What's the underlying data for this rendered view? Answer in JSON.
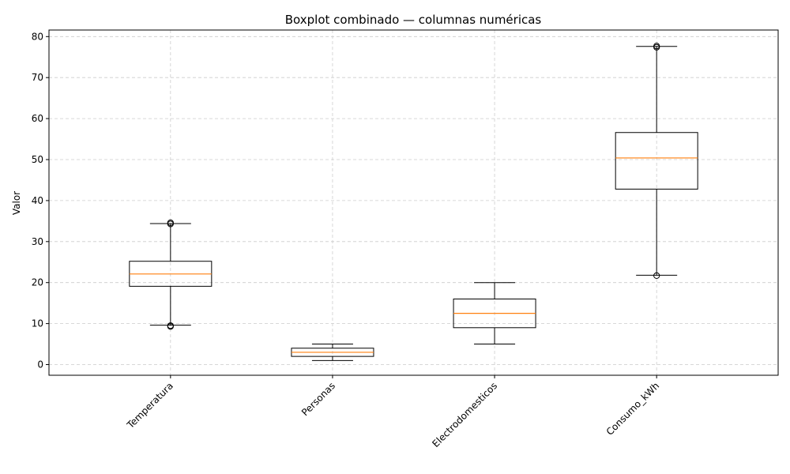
{
  "chart_data": {
    "type": "boxplot",
    "title": "Boxplot combinado — columnas numéricas",
    "xlabel": "",
    "ylabel": "Valor",
    "categories": [
      "Temperatura",
      "Personas",
      "Electrodomesticos",
      "Consumo_kWh"
    ],
    "ylim": [
      -2.6,
      81.6
    ],
    "yticks": [
      0,
      10,
      20,
      30,
      40,
      50,
      60,
      70,
      80
    ],
    "grid": true,
    "boxes": [
      {
        "name": "Temperatura",
        "whisker_low": 9.6,
        "q1": 19.1,
        "median": 22.1,
        "q3": 25.2,
        "whisker_high": 34.4,
        "outliers": [
          9.3,
          9.5,
          34.3,
          34.6
        ]
      },
      {
        "name": "Personas",
        "whisker_low": 1,
        "q1": 2,
        "median": 3,
        "q3": 4,
        "whisker_high": 5,
        "outliers": []
      },
      {
        "name": "Electrodomesticos",
        "whisker_low": 5,
        "q1": 9,
        "median": 12.5,
        "q3": 16,
        "whisker_high": 20,
        "outliers": []
      },
      {
        "name": "Consumo_kWh",
        "whisker_low": 21.8,
        "q1": 42.8,
        "median": 50.4,
        "q3": 56.6,
        "whisker_high": 77.6,
        "outliers": [
          21.7,
          77.4,
          77.7
        ]
      }
    ],
    "colors": {
      "box": "#000000",
      "median": "#ff7f0e",
      "grid": "#cccccc",
      "outlier": "#000000"
    }
  }
}
